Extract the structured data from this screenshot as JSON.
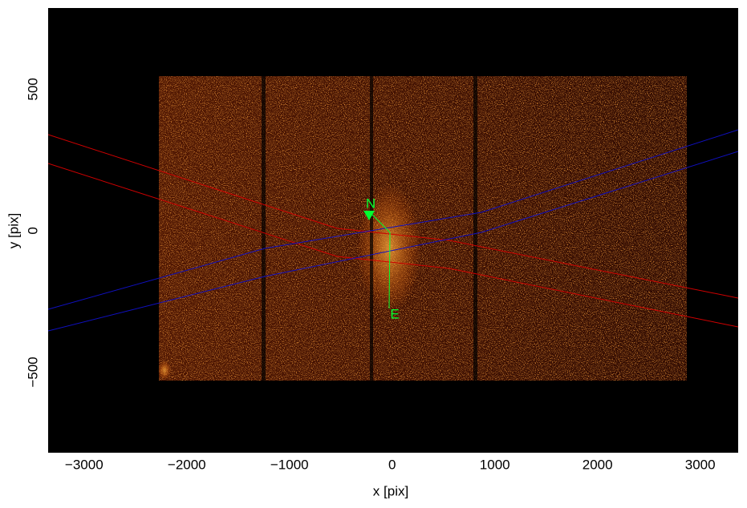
{
  "chart_data": {
    "type": "image",
    "xlabel": "x [pix]",
    "ylabel": "y [pix]",
    "xlim": [
      -3350,
      3370
    ],
    "ylim": [
      -785,
      787
    ],
    "xticks": [
      {
        "value": -3000,
        "label": "−3000"
      },
      {
        "value": -2000,
        "label": "−2000"
      },
      {
        "value": -1000,
        "label": "−1000"
      },
      0,
      1000,
      2000,
      3000
    ],
    "yticks": [
      {
        "value": -500,
        "label": "−500"
      },
      0,
      500
    ],
    "grid": false,
    "annotations": [
      "N",
      "E"
    ]
  }
}
